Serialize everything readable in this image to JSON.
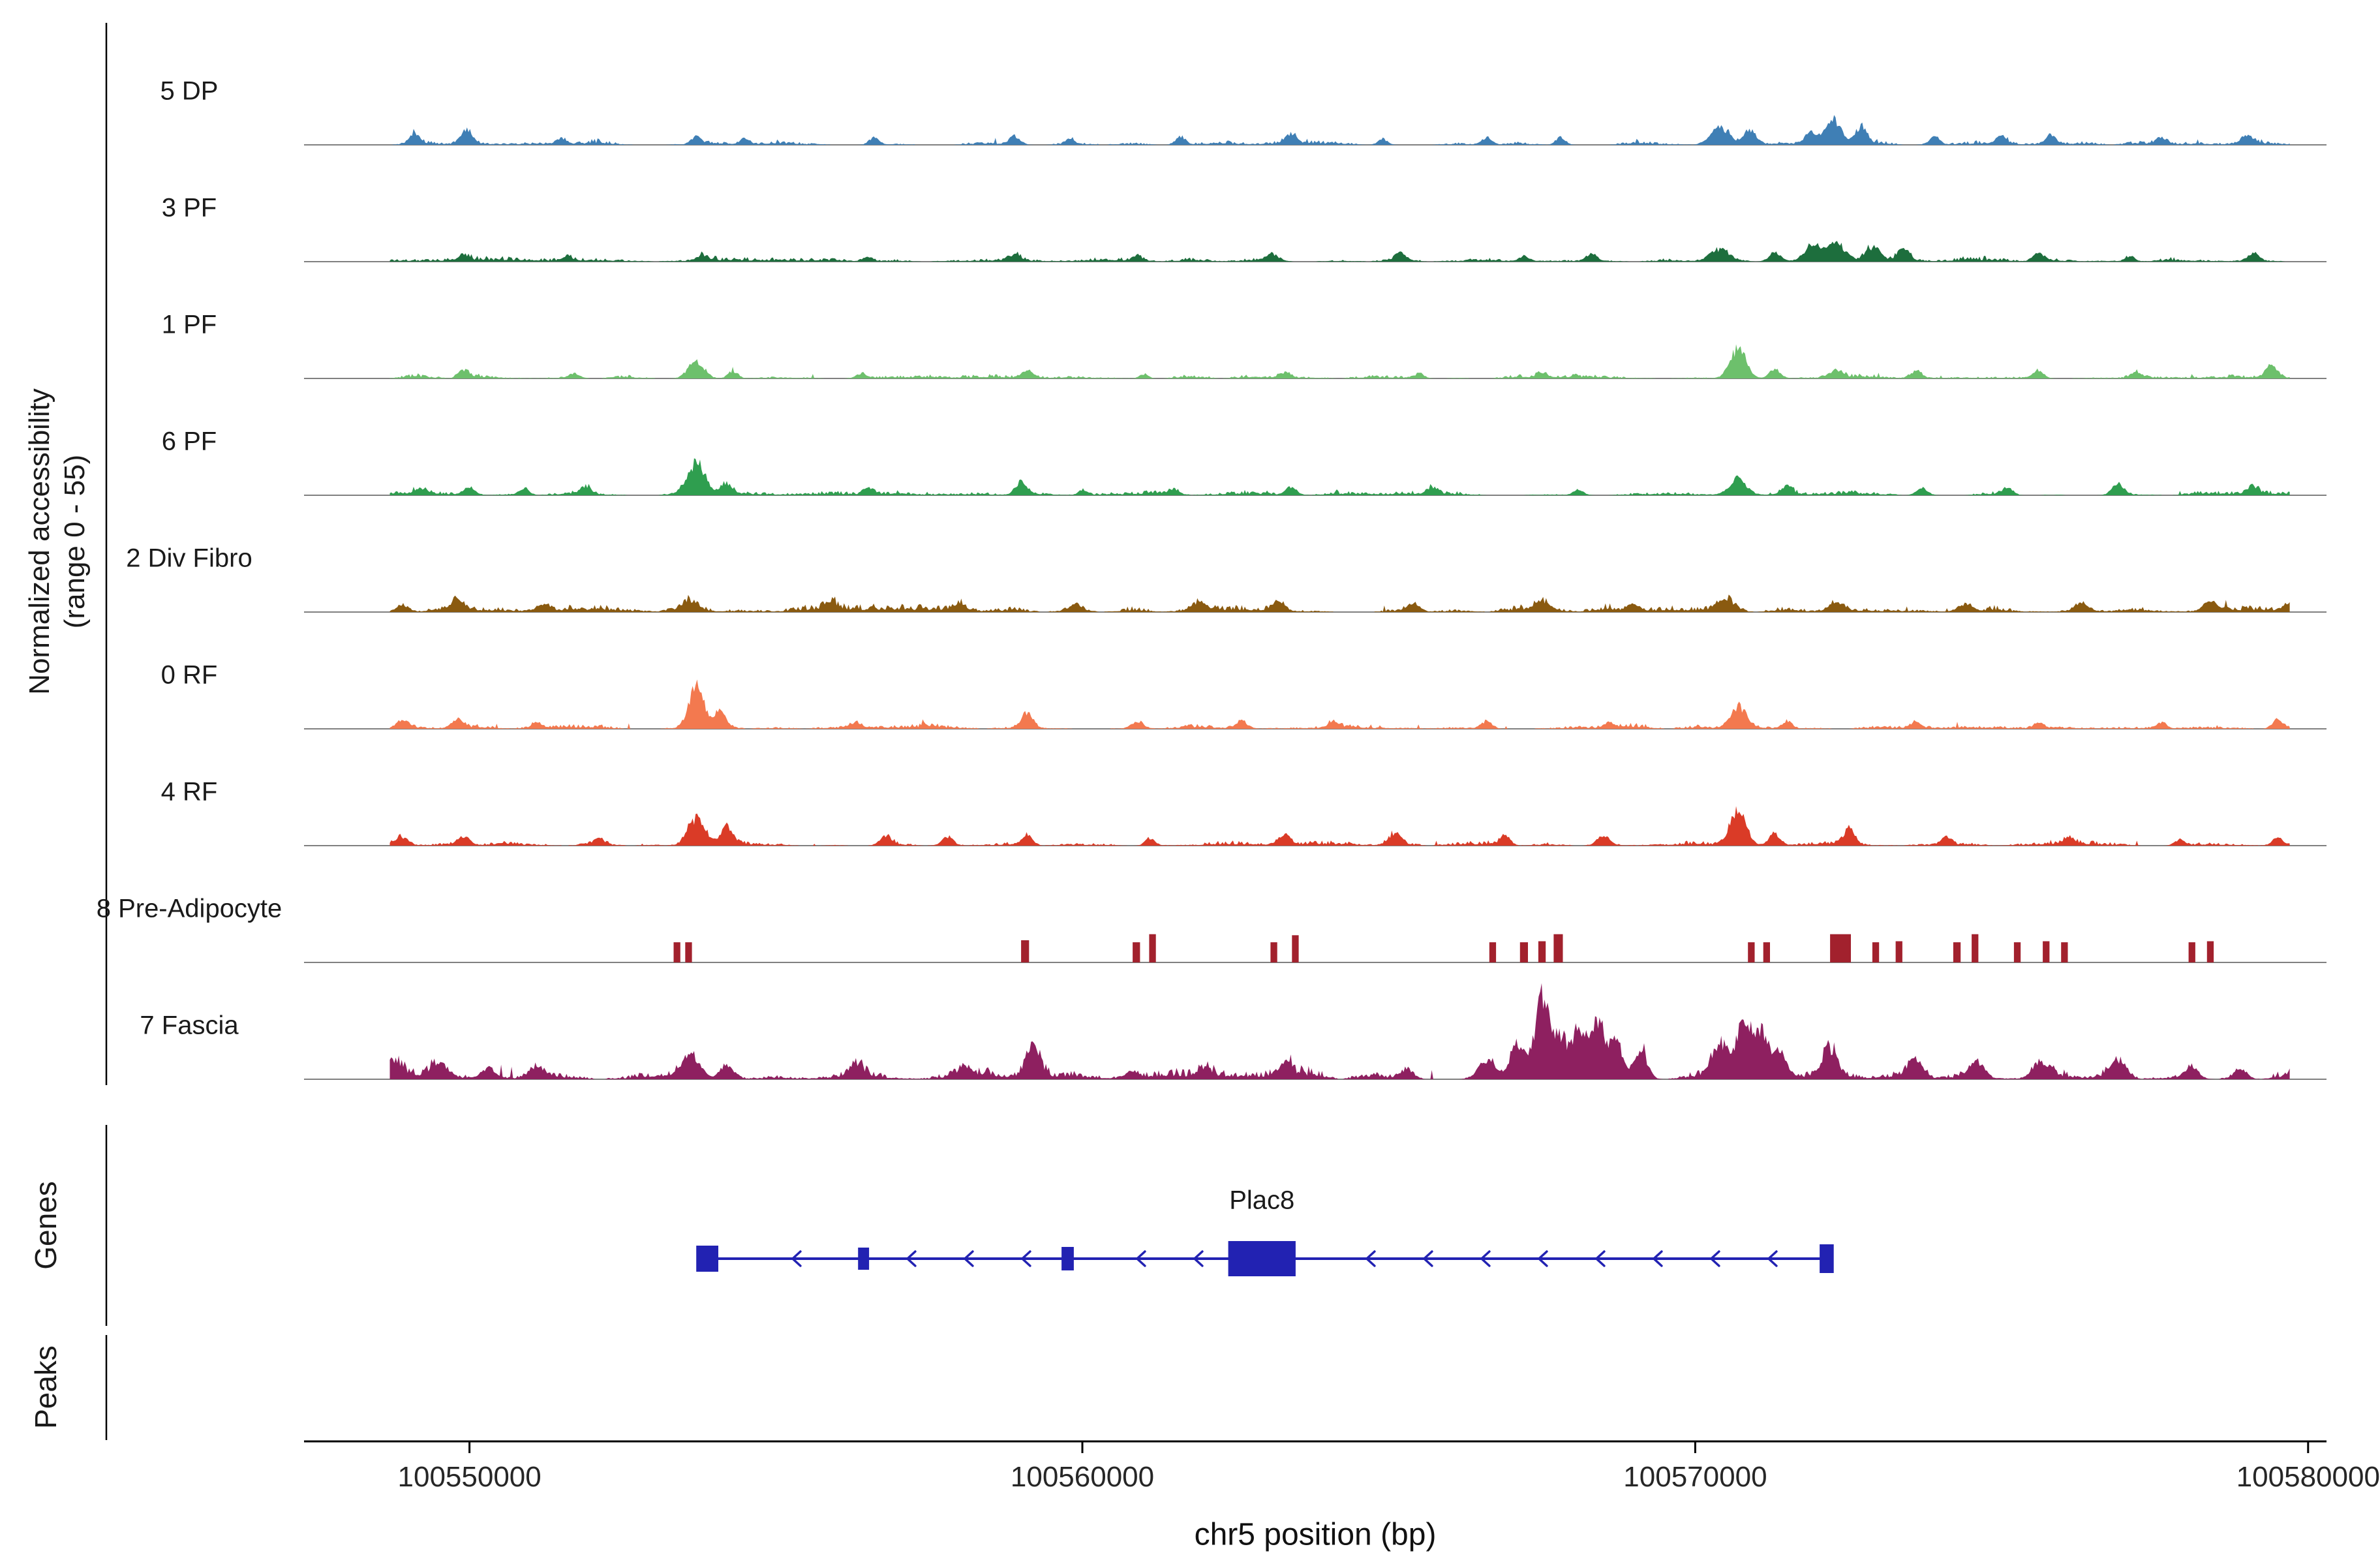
{
  "chart_data": {
    "type": "area",
    "xlabel": "chr5 position (bp)",
    "ylabel_line1": "Normalized accessibility",
    "ylabel_line2": "(range 0 - 55)",
    "y_range": [
      0,
      55
    ],
    "region": {
      "chrom": "chr5",
      "start": 100547300,
      "end": 100580300,
      "data_start": 100548700,
      "data_end": 100579700
    },
    "x_ticks": [
      100550000,
      100560000,
      100570000,
      100580000
    ],
    "groups": {
      "genes_label": "Genes",
      "peaks_label": "Peaks"
    },
    "colors": {
      "baseline": "#808080",
      "axis": "#000000"
    },
    "tracks": [
      {
        "label": "5 DP",
        "color": "#3f7fb5",
        "type": "signal",
        "seed": 101,
        "noise": 2.2,
        "peaks": [
          [
            100549100,
            6,
            80
          ],
          [
            100549950,
            8,
            90
          ],
          [
            100551500,
            3,
            80
          ],
          [
            100553700,
            4,
            80
          ],
          [
            100554500,
            3,
            70
          ],
          [
            100556600,
            4,
            80
          ],
          [
            100558900,
            4.5,
            90
          ],
          [
            100559800,
            3,
            70
          ],
          [
            100561600,
            4,
            80
          ],
          [
            100563400,
            5,
            90
          ],
          [
            100564900,
            3,
            80
          ],
          [
            100566600,
            4,
            80
          ],
          [
            100567800,
            4,
            80
          ],
          [
            100570400,
            8.5,
            150
          ],
          [
            100570900,
            7,
            100
          ],
          [
            100571900,
            6.5,
            100
          ],
          [
            100572250,
            14,
            120
          ],
          [
            100572700,
            8.5,
            90
          ],
          [
            100573900,
            4.5,
            80
          ],
          [
            100575000,
            4,
            80
          ],
          [
            100575800,
            5,
            90
          ],
          [
            100577600,
            3,
            80
          ],
          [
            100579000,
            4.5,
            90
          ]
        ]
      },
      {
        "label": "3 PF",
        "color": "#1d6e3d",
        "type": "signal",
        "seed": 102,
        "noise": 2,
        "peaks": [
          [
            100549900,
            3,
            80
          ],
          [
            100551600,
            2.5,
            70
          ],
          [
            100553800,
            3,
            90
          ],
          [
            100556500,
            2.5,
            70
          ],
          [
            100558900,
            3,
            90
          ],
          [
            100560900,
            2.5,
            70
          ],
          [
            100563100,
            4,
            100
          ],
          [
            100565200,
            3,
            90
          ],
          [
            100567200,
            3,
            90
          ],
          [
            100568300,
            4,
            90
          ],
          [
            100570400,
            6,
            150
          ],
          [
            100571300,
            4.5,
            100
          ],
          [
            100571900,
            8,
            120
          ],
          [
            100572300,
            9,
            150
          ],
          [
            100572900,
            7,
            110
          ],
          [
            100573400,
            6,
            90
          ],
          [
            100575600,
            4,
            90
          ],
          [
            100577100,
            3,
            80
          ],
          [
            100579100,
            4,
            90
          ]
        ]
      },
      {
        "label": "1 PF",
        "color": "#6dc06c",
        "type": "signal",
        "seed": 103,
        "noise": 2,
        "peaks": [
          [
            100549900,
            4,
            90
          ],
          [
            100551700,
            2.5,
            80
          ],
          [
            100553700,
            9,
            130
          ],
          [
            100554300,
            4,
            80
          ],
          [
            100556400,
            2.5,
            80
          ],
          [
            100559100,
            4,
            90
          ],
          [
            100561000,
            2.5,
            70
          ],
          [
            100563300,
            3,
            90
          ],
          [
            100565500,
            2.5,
            80
          ],
          [
            100567500,
            2.5,
            80
          ],
          [
            100570700,
            15.5,
            130
          ],
          [
            100571300,
            5,
            90
          ],
          [
            100572300,
            4,
            90
          ],
          [
            100573600,
            4,
            90
          ],
          [
            100575600,
            4,
            90
          ],
          [
            100577200,
            3,
            80
          ],
          [
            100579400,
            6,
            100
          ]
        ]
      },
      {
        "label": "6 PF",
        "color": "#2f9e4f",
        "type": "signal",
        "seed": 104,
        "noise": 2,
        "peaks": [
          [
            100549200,
            3,
            80
          ],
          [
            100550000,
            4,
            90
          ],
          [
            100550900,
            4,
            80
          ],
          [
            100551900,
            4.5,
            90
          ],
          [
            100553700,
            17,
            140
          ],
          [
            100554200,
            6,
            90
          ],
          [
            100556500,
            4,
            80
          ],
          [
            100559000,
            7,
            100
          ],
          [
            100560000,
            2.5,
            70
          ],
          [
            100561500,
            2.5,
            80
          ],
          [
            100563400,
            4,
            90
          ],
          [
            100565700,
            3,
            80
          ],
          [
            100568100,
            3,
            80
          ],
          [
            100570700,
            9,
            140
          ],
          [
            100571500,
            4,
            80
          ],
          [
            100573700,
            4,
            90
          ],
          [
            100575100,
            4,
            80
          ],
          [
            100576900,
            6,
            100
          ],
          [
            100579100,
            4,
            80
          ]
        ]
      },
      {
        "label": "2 Div Fibro",
        "color": "#8a5a10",
        "type": "signal",
        "seed": 105,
        "noise": 3,
        "peaks": [
          [
            100548900,
            4,
            100
          ],
          [
            100549800,
            4.5,
            110
          ],
          [
            100551200,
            4,
            100
          ],
          [
            100553600,
            5,
            120
          ],
          [
            100555900,
            4,
            100
          ],
          [
            100558000,
            3,
            90
          ],
          [
            100559900,
            4,
            100
          ],
          [
            100561900,
            4.5,
            110
          ],
          [
            100563200,
            5,
            110
          ],
          [
            100565400,
            4,
            100
          ],
          [
            100567500,
            5,
            120
          ],
          [
            100569000,
            4,
            100
          ],
          [
            100570500,
            6.5,
            140
          ],
          [
            100572300,
            5,
            110
          ],
          [
            100574400,
            4.5,
            110
          ],
          [
            100576300,
            4,
            100
          ],
          [
            100578400,
            5,
            110
          ],
          [
            100579700,
            4,
            90
          ]
        ]
      },
      {
        "label": "0 RF",
        "color": "#f3794f",
        "type": "signal",
        "seed": 106,
        "noise": 2.3,
        "peaks": [
          [
            100548900,
            4.5,
            100
          ],
          [
            100549800,
            5,
            100
          ],
          [
            100551100,
            3,
            80
          ],
          [
            100553700,
            20,
            120
          ],
          [
            100554100,
            8,
            90
          ],
          [
            100556300,
            3,
            90
          ],
          [
            100559100,
            8,
            100
          ],
          [
            100560900,
            4,
            90
          ],
          [
            100562600,
            4,
            90
          ],
          [
            100564100,
            3,
            80
          ],
          [
            100566600,
            4,
            90
          ],
          [
            100568600,
            3,
            80
          ],
          [
            100570700,
            12,
            130
          ],
          [
            100571500,
            4,
            80
          ],
          [
            100573600,
            3,
            80
          ],
          [
            100575600,
            3,
            80
          ],
          [
            100577600,
            3,
            80
          ],
          [
            100579500,
            4.5,
            90
          ]
        ]
      },
      {
        "label": "4 RF",
        "color": "#da3b27",
        "type": "signal",
        "seed": 107,
        "noise": 2,
        "peaks": [
          [
            100548900,
            4,
            90
          ],
          [
            100549900,
            4.5,
            90
          ],
          [
            100552100,
            3,
            80
          ],
          [
            100553700,
            15,
            140
          ],
          [
            100554200,
            9,
            100
          ],
          [
            100556800,
            5,
            90
          ],
          [
            100557800,
            4.5,
            90
          ],
          [
            100559100,
            5,
            90
          ],
          [
            100561100,
            4,
            80
          ],
          [
            100563300,
            5,
            100
          ],
          [
            100565100,
            6,
            100
          ],
          [
            100566900,
            4.5,
            90
          ],
          [
            100568500,
            5,
            100
          ],
          [
            100570700,
            18,
            130
          ],
          [
            100571300,
            6.5,
            90
          ],
          [
            100572500,
            7,
            100
          ],
          [
            100574100,
            4,
            80
          ],
          [
            100576100,
            4,
            80
          ],
          [
            100577900,
            3,
            80
          ],
          [
            100579500,
            4,
            80
          ]
        ]
      },
      {
        "label": "8 Pre-Adipocyte",
        "color": "#a2212d",
        "type": "blocks",
        "seed": 108,
        "noise": 0,
        "blocks": [
          [
            100553330,
            110,
            10
          ],
          [
            100553520,
            110,
            10
          ],
          [
            100559000,
            130,
            11
          ],
          [
            100560820,
            120,
            10
          ],
          [
            100561090,
            110,
            14
          ],
          [
            100563070,
            110,
            10
          ],
          [
            100563420,
            110,
            13.5
          ],
          [
            100566640,
            110,
            10
          ],
          [
            100567140,
            130,
            10
          ],
          [
            100567440,
            120,
            10.5
          ],
          [
            100567690,
            150,
            14
          ],
          [
            100570860,
            110,
            10
          ],
          [
            100571110,
            110,
            10
          ],
          [
            100572200,
            340,
            14
          ],
          [
            100572890,
            110,
            10
          ],
          [
            100573270,
            110,
            10.5
          ],
          [
            100574210,
            120,
            10
          ],
          [
            100574510,
            110,
            14
          ],
          [
            100575200,
            110,
            10
          ],
          [
            100575670,
            110,
            10.5
          ],
          [
            100575970,
            110,
            10
          ],
          [
            100578050,
            110,
            10
          ],
          [
            100578350,
            110,
            10.5
          ]
        ]
      },
      {
        "label": "7 Fascia",
        "color": "#8e2060",
        "type": "signal",
        "seed": 109,
        "noise": 5,
        "peaks": [
          [
            100548800,
            6.5,
            120
          ],
          [
            100549500,
            8,
            130
          ],
          [
            100550300,
            6,
            110
          ],
          [
            100551100,
            6.5,
            120
          ],
          [
            100553600,
            13,
            150
          ],
          [
            100554200,
            8,
            110
          ],
          [
            100556300,
            6,
            100
          ],
          [
            100558100,
            5,
            100
          ],
          [
            100559200,
            18,
            110
          ],
          [
            100560800,
            4.5,
            100
          ],
          [
            100562000,
            5,
            100
          ],
          [
            100563300,
            6,
            110
          ],
          [
            100565300,
            5,
            100
          ],
          [
            100566600,
            10,
            130
          ],
          [
            100567100,
            19,
            120
          ],
          [
            100567500,
            47,
            110
          ],
          [
            100567800,
            23,
            100
          ],
          [
            100568100,
            27,
            110
          ],
          [
            100568400,
            32,
            110
          ],
          [
            100568700,
            23,
            100
          ],
          [
            100569100,
            16,
            110
          ],
          [
            100570400,
            18,
            130
          ],
          [
            100570800,
            31,
            120
          ],
          [
            100571100,
            24,
            110
          ],
          [
            100571400,
            15,
            100
          ],
          [
            100572200,
            15,
            120
          ],
          [
            100573600,
            9,
            120
          ],
          [
            100574600,
            8.5,
            120
          ],
          [
            100575600,
            7,
            110
          ],
          [
            100576900,
            9,
            120
          ],
          [
            100578100,
            7,
            110
          ],
          [
            100578900,
            6,
            100
          ]
        ]
      }
    ],
    "gene": {
      "name": "Plac8",
      "color": "#2222b2",
      "strand": "-",
      "start": 100553750,
      "end": 100572250,
      "exons": [
        [
          100553700,
          100554060,
          40
        ],
        [
          100556340,
          100556520,
          34
        ],
        [
          100559660,
          100559860,
          36
        ],
        [
          100562380,
          100563480,
          54
        ],
        [
          100572030,
          100572260,
          44
        ]
      ]
    }
  }
}
